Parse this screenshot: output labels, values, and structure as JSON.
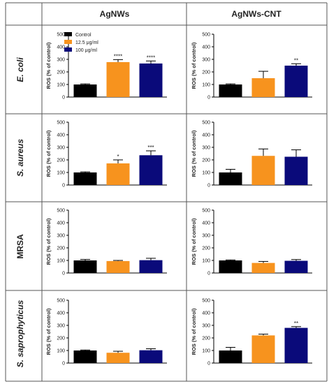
{
  "column_headers": [
    "AgNWs",
    "AgNWs-CNT"
  ],
  "row_labels": [
    "E. coli",
    "S. aureus",
    "MRSA",
    "S. saprophyticus"
  ],
  "legend": [
    "Control",
    "12.5 μg/ml",
    "100 μg/ml"
  ],
  "colors": {
    "Control": "#000000",
    "12.5 μg/ml": "#F7931E",
    "100 μg/ml": "#0A0A7A"
  },
  "chart_data": [
    {
      "type": "bar",
      "organism": "E. coli",
      "material": "AgNWs",
      "ylabel": "ROS (% of control)",
      "ylim": [
        0,
        500
      ],
      "yticks": [
        0,
        100,
        200,
        300,
        400,
        500
      ],
      "categories": [
        "Control",
        "12.5 μg/ml",
        "100 μg/ml"
      ],
      "values": [
        100,
        278,
        267
      ],
      "errors": [
        5,
        20,
        20
      ],
      "significance": [
        "",
        "****",
        "****"
      ]
    },
    {
      "type": "bar",
      "organism": "E. coli",
      "material": "AgNWs-CNT",
      "ylabel": "ROS (% of control)",
      "ylim": [
        0,
        500
      ],
      "yticks": [
        0,
        100,
        200,
        300,
        400,
        500
      ],
      "categories": [
        "Control",
        "12.5 μg/ml",
        "100 μg/ml"
      ],
      "values": [
        100,
        150,
        250
      ],
      "errors": [
        5,
        55,
        15
      ],
      "significance": [
        "",
        "",
        "**"
      ]
    },
    {
      "type": "bar",
      "organism": "S. aureus",
      "material": "AgNWs",
      "ylabel": "ROS (% of control)",
      "ylim": [
        0,
        500
      ],
      "yticks": [
        0,
        100,
        200,
        300,
        400,
        500
      ],
      "categories": [
        "Control",
        "12.5 μg/ml",
        "100 μg/ml"
      ],
      "values": [
        100,
        172,
        237
      ],
      "errors": [
        5,
        28,
        35
      ],
      "significance": [
        "",
        "*",
        "***"
      ]
    },
    {
      "type": "bar",
      "organism": "S. aureus",
      "material": "AgNWs-CNT",
      "ylabel": "ROS (% of control)",
      "ylim": [
        0,
        500
      ],
      "yticks": [
        0,
        100,
        200,
        300,
        400,
        500
      ],
      "categories": [
        "Control",
        "12.5 μg/ml",
        "100 μg/ml"
      ],
      "values": [
        100,
        232,
        225
      ],
      "errors": [
        25,
        55,
        55
      ],
      "significance": [
        "",
        "",
        ""
      ]
    },
    {
      "type": "bar",
      "organism": "MRSA",
      "material": "AgNWs",
      "ylabel": "ROS (% of control)",
      "ylim": [
        0,
        500
      ],
      "yticks": [
        0,
        100,
        200,
        300,
        400,
        500
      ],
      "categories": [
        "Control",
        "12.5 μg/ml",
        "100 μg/ml"
      ],
      "values": [
        100,
        95,
        102
      ],
      "errors": [
        8,
        5,
        15
      ],
      "significance": [
        "",
        "",
        ""
      ]
    },
    {
      "type": "bar",
      "organism": "MRSA",
      "material": "AgNWs-CNT",
      "ylabel": "ROS (% of control)",
      "ylim": [
        0,
        500
      ],
      "yticks": [
        0,
        100,
        200,
        300,
        400,
        500
      ],
      "categories": [
        "Control",
        "12.5 μg/ml",
        "100 μg/ml"
      ],
      "values": [
        100,
        80,
        97
      ],
      "errors": [
        4,
        12,
        10
      ],
      "significance": [
        "",
        "",
        ""
      ]
    },
    {
      "type": "bar",
      "organism": "S. saprophyticus",
      "material": "AgNWs",
      "ylabel": "ROS (% of control)",
      "ylim": [
        0,
        500
      ],
      "yticks": [
        0,
        100,
        200,
        300,
        400,
        500
      ],
      "categories": [
        "Control",
        "12.5 μg/ml",
        "100 μg/ml"
      ],
      "values": [
        100,
        82,
        102
      ],
      "errors": [
        4,
        12,
        12
      ],
      "significance": [
        "",
        "",
        ""
      ]
    },
    {
      "type": "bar",
      "organism": "S. saprophyticus",
      "material": "AgNWs-CNT",
      "ylabel": "ROS (% of control)",
      "ylim": [
        0,
        500
      ],
      "yticks": [
        0,
        100,
        200,
        300,
        400,
        500
      ],
      "categories": [
        "Control",
        "12.5 μg/ml",
        "100 μg/ml"
      ],
      "values": [
        100,
        220,
        280
      ],
      "errors": [
        25,
        10,
        10
      ],
      "significance": [
        "",
        "",
        "**"
      ]
    }
  ]
}
